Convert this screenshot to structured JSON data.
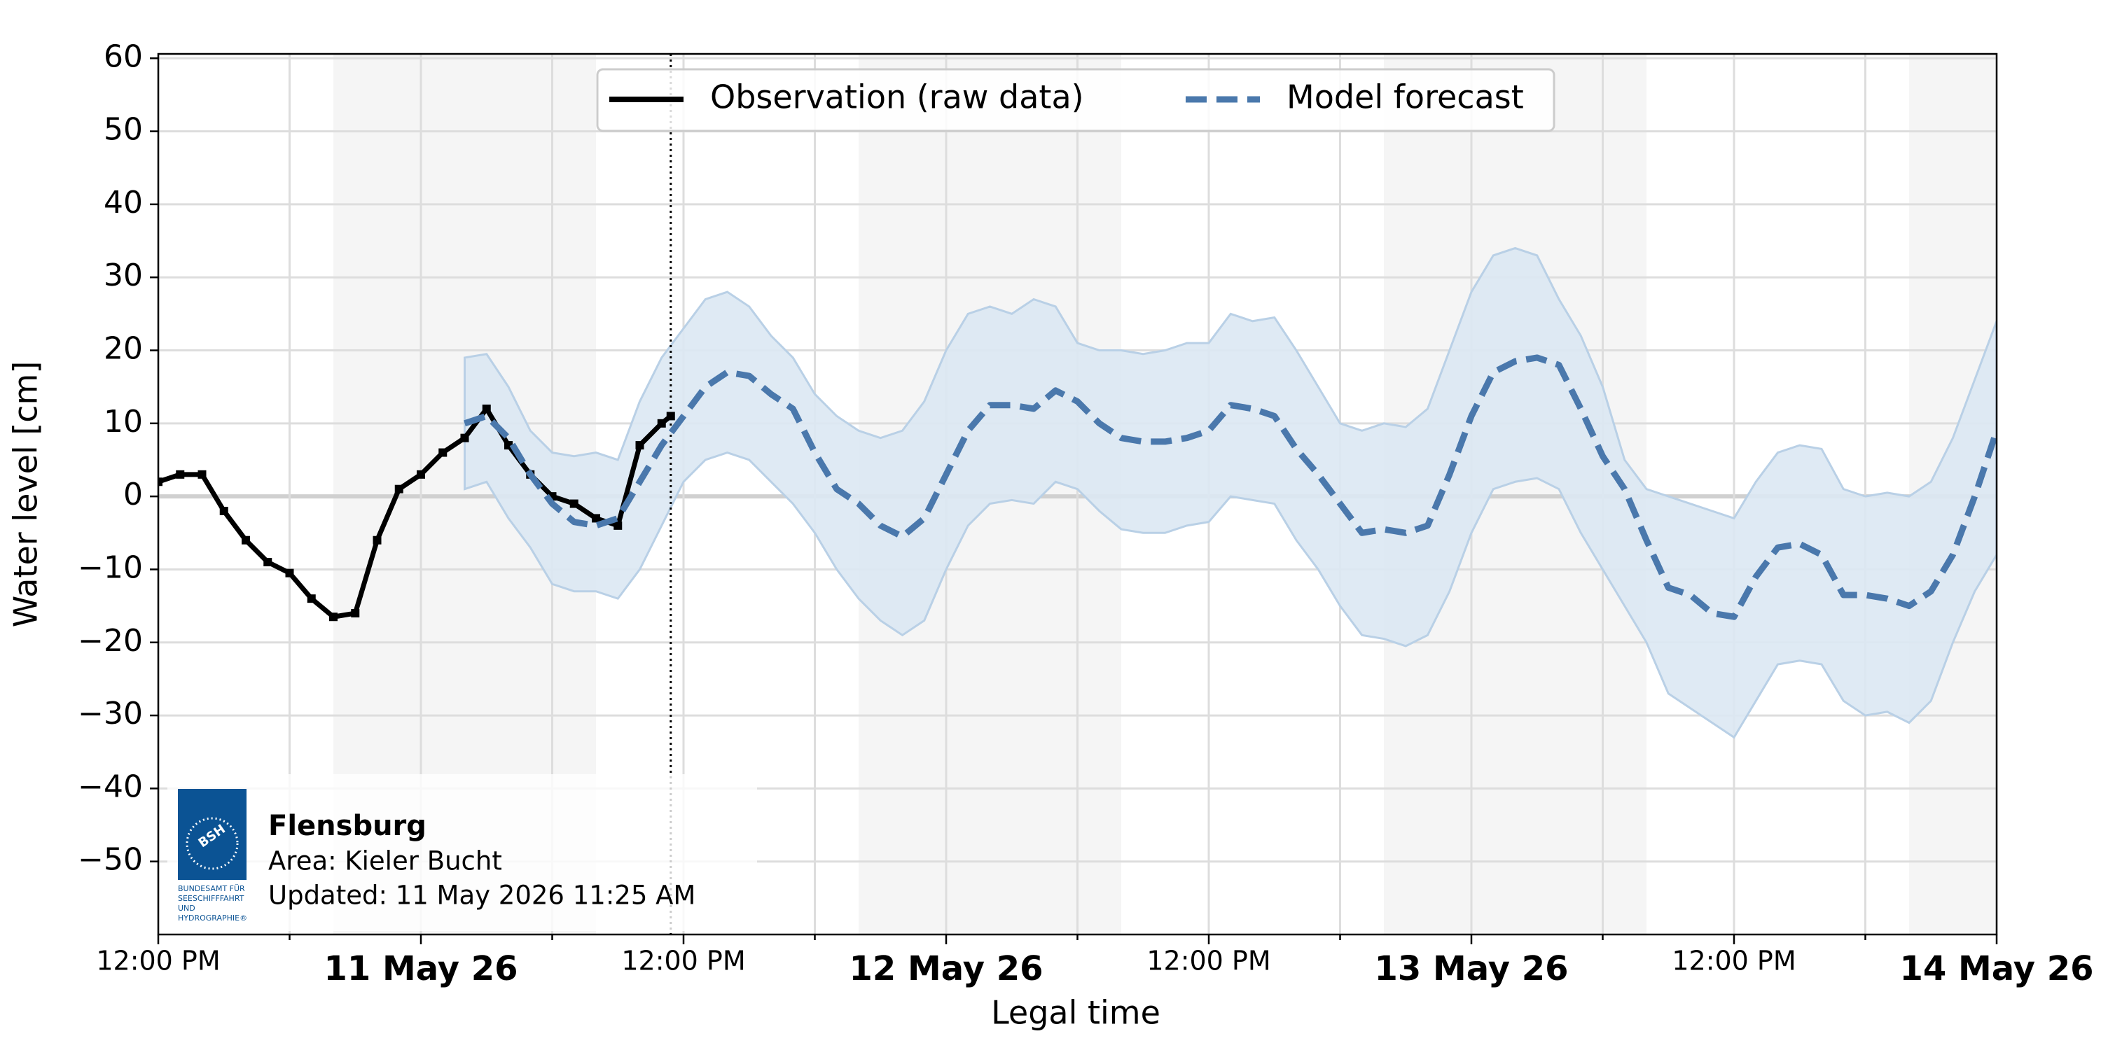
{
  "chart_data": {
    "type": "line",
    "xlabel": "Legal time",
    "ylabel": "Water level [cm]",
    "xlim": [
      "2026-05-10T12:00",
      "2026-05-14T00:00"
    ],
    "ylim": [
      -60,
      60.6
    ],
    "yticks": [
      {
        "value": -50,
        "label": "−50"
      },
      {
        "value": -40,
        "label": "−40"
      },
      {
        "value": -30,
        "label": "−30"
      },
      {
        "value": -20,
        "label": "−20"
      },
      {
        "value": -10,
        "label": "−10"
      },
      0,
      10,
      20,
      30,
      40,
      50,
      60
    ],
    "xticks": [
      {
        "value": "2026-05-10T12:00",
        "label": "12:00 PM"
      },
      {
        "value": "2026-05-11T12:00",
        "label": "12:00 PM"
      },
      {
        "value": "2026-05-12T12:00",
        "label": "12:00 PM"
      },
      {
        "value": "2026-05-13T12:00",
        "label": "12:00 PM"
      }
    ],
    "xticks_major": [
      {
        "value": "2026-05-11T00:00",
        "label": "11 May 26"
      },
      {
        "value": "2026-05-12T00:00",
        "label": "12 May 26"
      },
      {
        "value": "2026-05-13T00:00",
        "label": "13 May 26"
      },
      {
        "value": "2026-05-14T00:00",
        "label": "14 May 26"
      }
    ],
    "xticks_minor": [
      "2026-05-10T18:00",
      "2026-05-11T06:00",
      "2026-05-11T18:00",
      "2026-05-12T06:00",
      "2026-05-12T18:00",
      "2026-05-13T06:00",
      "2026-05-13T18:00"
    ],
    "grid": true,
    "legend": "upper center",
    "now": "2026-05-11T11:25",
    "night_shading": [
      [
        "2026-05-10T20:00",
        "2026-05-11T08:00"
      ],
      [
        "2026-05-11T20:00",
        "2026-05-12T08:00"
      ],
      [
        "2026-05-12T20:00",
        "2026-05-13T08:00"
      ],
      [
        "2026-05-13T20:00",
        "2026-05-14T08:00"
      ]
    ],
    "series": [
      {
        "name": "Observation (raw data)",
        "color": "#000000",
        "style": "solid",
        "x": [
          "2026-05-10T12:00",
          "2026-05-10T13:00",
          "2026-05-10T14:00",
          "2026-05-10T15:00",
          "2026-05-10T16:00",
          "2026-05-10T17:00",
          "2026-05-10T18:00",
          "2026-05-10T19:00",
          "2026-05-10T20:00",
          "2026-05-10T21:00",
          "2026-05-10T22:00",
          "2026-05-10T23:00",
          "2026-05-11T00:00",
          "2026-05-11T01:00",
          "2026-05-11T02:00",
          "2026-05-11T03:00",
          "2026-05-11T04:00",
          "2026-05-11T05:00",
          "2026-05-11T06:00",
          "2026-05-11T07:00",
          "2026-05-11T08:00",
          "2026-05-11T09:00",
          "2026-05-11T10:00",
          "2026-05-11T11:00",
          "2026-05-11T11:25"
        ],
        "values": [
          2,
          3,
          3,
          -2,
          -6,
          -9,
          -10.5,
          -14,
          -16.5,
          -16,
          -6,
          1,
          3,
          6,
          8,
          12,
          7,
          3,
          0,
          -1,
          -3,
          -4,
          7,
          10,
          11
        ]
      },
      {
        "name": "Model forecast",
        "color": "#4a78ac",
        "style": "dashed",
        "band_color": "#dce8f3",
        "x": [
          "2026-05-11T02:00",
          "2026-05-11T03:00",
          "2026-05-11T04:00",
          "2026-05-11T05:00",
          "2026-05-11T06:00",
          "2026-05-11T07:00",
          "2026-05-11T08:00",
          "2026-05-11T09:00",
          "2026-05-11T10:00",
          "2026-05-11T11:00",
          "2026-05-11T12:00",
          "2026-05-11T13:00",
          "2026-05-11T14:00",
          "2026-05-11T15:00",
          "2026-05-11T16:00",
          "2026-05-11T17:00",
          "2026-05-11T18:00",
          "2026-05-11T19:00",
          "2026-05-11T20:00",
          "2026-05-11T21:00",
          "2026-05-11T22:00",
          "2026-05-11T23:00",
          "2026-05-12T00:00",
          "2026-05-12T01:00",
          "2026-05-12T02:00",
          "2026-05-12T03:00",
          "2026-05-12T04:00",
          "2026-05-12T05:00",
          "2026-05-12T06:00",
          "2026-05-12T07:00",
          "2026-05-12T08:00",
          "2026-05-12T09:00",
          "2026-05-12T10:00",
          "2026-05-12T11:00",
          "2026-05-12T12:00",
          "2026-05-12T13:00",
          "2026-05-12T14:00",
          "2026-05-12T15:00",
          "2026-05-12T16:00",
          "2026-05-12T17:00",
          "2026-05-12T18:00",
          "2026-05-12T19:00",
          "2026-05-12T20:00",
          "2026-05-12T21:00",
          "2026-05-12T22:00",
          "2026-05-12T23:00",
          "2026-05-13T00:00",
          "2026-05-13T01:00",
          "2026-05-13T02:00",
          "2026-05-13T03:00",
          "2026-05-13T04:00",
          "2026-05-13T05:00",
          "2026-05-13T06:00",
          "2026-05-13T07:00",
          "2026-05-13T08:00",
          "2026-05-13T09:00",
          "2026-05-13T10:00",
          "2026-05-13T11:00",
          "2026-05-13T12:00",
          "2026-05-13T13:00",
          "2026-05-13T14:00",
          "2026-05-13T15:00",
          "2026-05-13T16:00",
          "2026-05-13T17:00",
          "2026-05-13T18:00",
          "2026-05-13T19:00",
          "2026-05-13T20:00",
          "2026-05-13T21:00",
          "2026-05-13T22:00",
          "2026-05-13T23:00",
          "2026-05-14T00:00"
        ],
        "values": [
          10,
          11,
          8,
          3,
          -1,
          -3.5,
          -4,
          -3,
          2,
          7,
          11,
          15,
          17,
          16.5,
          14,
          12,
          6,
          1,
          -1,
          -4,
          -5.5,
          -3,
          3,
          9,
          12.5,
          12.5,
          12,
          14.5,
          13,
          10,
          8,
          7.5,
          7.5,
          8,
          9,
          12.5,
          12,
          11,
          6.5,
          3,
          -1,
          -5,
          -4.5,
          -5,
          -4,
          3,
          11,
          17,
          18.5,
          19,
          18,
          12,
          5.5,
          1,
          -6,
          -12.5,
          -13.5,
          -16,
          -16.5,
          -11,
          -7,
          -6.5,
          -8,
          -13.5,
          -13.5,
          -14,
          -15,
          -13,
          -8,
          0,
          9
        ],
        "upper": [
          19,
          19.5,
          15,
          9,
          6,
          5.5,
          6,
          5,
          13,
          19,
          23,
          27,
          28,
          26,
          22,
          19,
          14,
          11,
          9,
          8,
          9,
          13,
          20,
          25,
          26,
          25,
          27,
          26,
          21,
          20,
          20,
          19.5,
          20,
          21,
          21,
          25,
          24,
          24.5,
          20,
          15,
          10,
          9,
          10,
          9.5,
          12,
          20,
          28,
          33,
          34,
          33,
          27,
          22,
          15,
          5,
          1,
          0,
          -1,
          -2,
          -3,
          2,
          6,
          7,
          6.5,
          1,
          0,
          0.5,
          0,
          2,
          8,
          16,
          24
        ],
        "lower": [
          1,
          2,
          -3,
          -7,
          -12,
          -13,
          -13,
          -14,
          -10,
          -4,
          2,
          5,
          6,
          5,
          2,
          -1,
          -5,
          -10,
          -14,
          -17,
          -19,
          -17,
          -10,
          -4,
          -1,
          -0.5,
          -1,
          2,
          1,
          -2,
          -4.5,
          -5,
          -5,
          -4,
          -3.5,
          0,
          -0.5,
          -1,
          -6,
          -10,
          -15,
          -19,
          -19.5,
          -20.5,
          -19,
          -13,
          -5,
          1,
          2,
          2.5,
          1,
          -5,
          -10,
          -15,
          -20,
          -27,
          -29,
          -31,
          -33,
          -28,
          -23,
          -22.5,
          -23,
          -28,
          -30,
          -29.5,
          -31,
          -28,
          -20,
          -13,
          -8
        ]
      }
    ],
    "info": {
      "station": "Flensburg",
      "area": "Area: Kieler Bucht",
      "updated": "Updated: 11 May 2026 11:25 AM",
      "logo_text": "BSH",
      "logo_caption": [
        "BUNDESAMT FÜR",
        "SEESCHIFFFAHRT",
        "UND",
        "HYDROGRAPHIE®"
      ],
      "logo_color": "#0b5394"
    }
  }
}
